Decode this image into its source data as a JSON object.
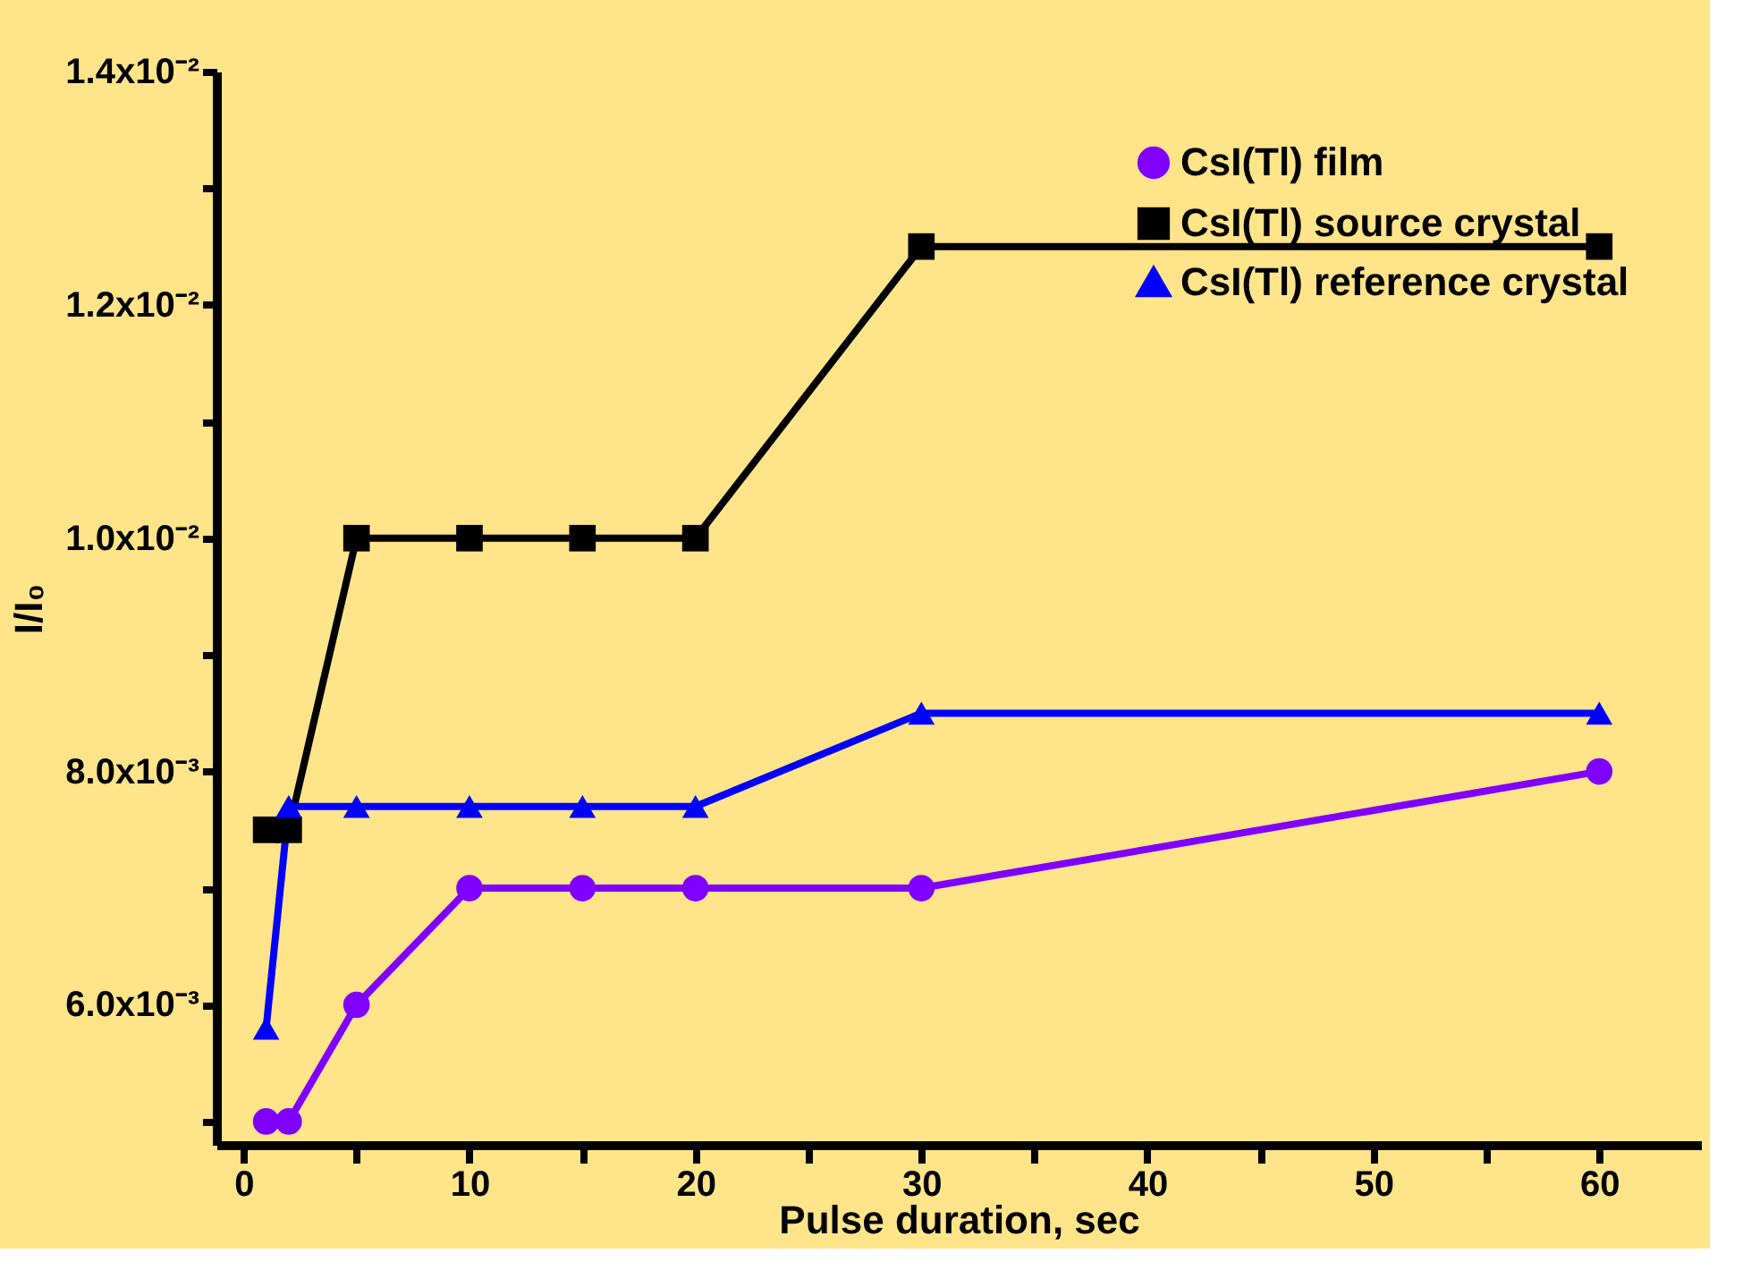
{
  "chart_data": {
    "type": "line",
    "xlabel": "Pulse duration, sec",
    "ylabel": "I/I₀",
    "xlim": [
      -1.2,
      64.5
    ],
    "ylim": [
      0.0048,
      0.014
    ],
    "xticks": [
      0,
      {
        "value": 5,
        "label": null
      },
      10,
      {
        "value": 15,
        "label": null
      },
      20,
      {
        "value": 25,
        "label": null
      },
      30,
      {
        "value": 35,
        "label": null
      },
      40,
      {
        "value": 45,
        "label": null
      },
      50,
      {
        "value": 55,
        "label": null
      },
      60
    ],
    "yticks": [
      {
        "value": 0.005,
        "label": null
      },
      {
        "value": 0.006,
        "label": "6.0x10⁻³"
      },
      {
        "value": 0.007,
        "label": null
      },
      {
        "value": 0.008,
        "label": "8.0x10⁻³"
      },
      {
        "value": 0.009,
        "label": null
      },
      {
        "value": 0.01,
        "label": "1.0x10⁻²"
      },
      {
        "value": 0.011,
        "label": null
      },
      {
        "value": 0.012,
        "label": "1.2x10⁻²"
      },
      {
        "value": 0.013,
        "label": null
      },
      {
        "value": 0.014,
        "label": "1.4x10⁻²"
      }
    ],
    "x": [
      1,
      2,
      5,
      10,
      15,
      20,
      30,
      60
    ],
    "legend": "top right",
    "grid": false,
    "line_style": "solid",
    "series": [
      {
        "name": "CsI(Tl) film",
        "color": "#8000ff",
        "marker": "circle",
        "values": [
          0.005,
          0.005,
          0.006,
          0.007,
          0.007,
          0.007,
          0.007,
          0.008
        ]
      },
      {
        "name": "CsI(Tl) source crystal",
        "color": "#000000",
        "marker": "square",
        "values": [
          0.0075,
          0.0075,
          0.01,
          0.01,
          0.01,
          0.01,
          0.0125,
          0.0125
        ]
      },
      {
        "name": "CsI(Tl) reference crystal",
        "color": "#0000ff",
        "marker": "triangle",
        "values": [
          0.0058,
          0.0077,
          0.0077,
          0.0077,
          0.0077,
          0.0077,
          0.0085,
          0.0085
        ]
      }
    ]
  }
}
